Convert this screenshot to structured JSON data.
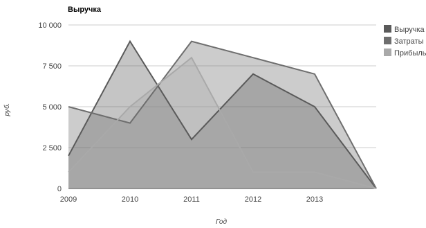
{
  "chart_data": {
    "type": "area",
    "title": "Выручка",
    "xlabel": "Год",
    "ylabel": "руб.",
    "x_ticks": [
      "2009",
      "2010",
      "2011",
      "2012",
      "2013"
    ],
    "x": [
      2009,
      2010,
      2011,
      2012,
      2013,
      2014
    ],
    "xlim": [
      2009,
      2014
    ],
    "ylim": [
      0,
      10000
    ],
    "y_ticks": [
      "0",
      "2 500",
      "5 000",
      "7 500",
      "10 000"
    ],
    "y_tick_values": [
      0,
      2500,
      5000,
      7500,
      10000
    ],
    "grid": true,
    "legend_position": "right",
    "series": [
      {
        "name": "Выручка",
        "values": [
          2000,
          9000,
          3000,
          7000,
          5000,
          0
        ],
        "color": "#5a5a5a"
      },
      {
        "name": "Затраты",
        "values": [
          5000,
          4000,
          9000,
          8000,
          7000,
          0
        ],
        "color": "#6e6e6e"
      },
      {
        "name": "Прибыль",
        "values": [
          1000,
          5000,
          8000,
          1000,
          1000,
          0
        ],
        "color": "#a9a9a9"
      }
    ]
  }
}
